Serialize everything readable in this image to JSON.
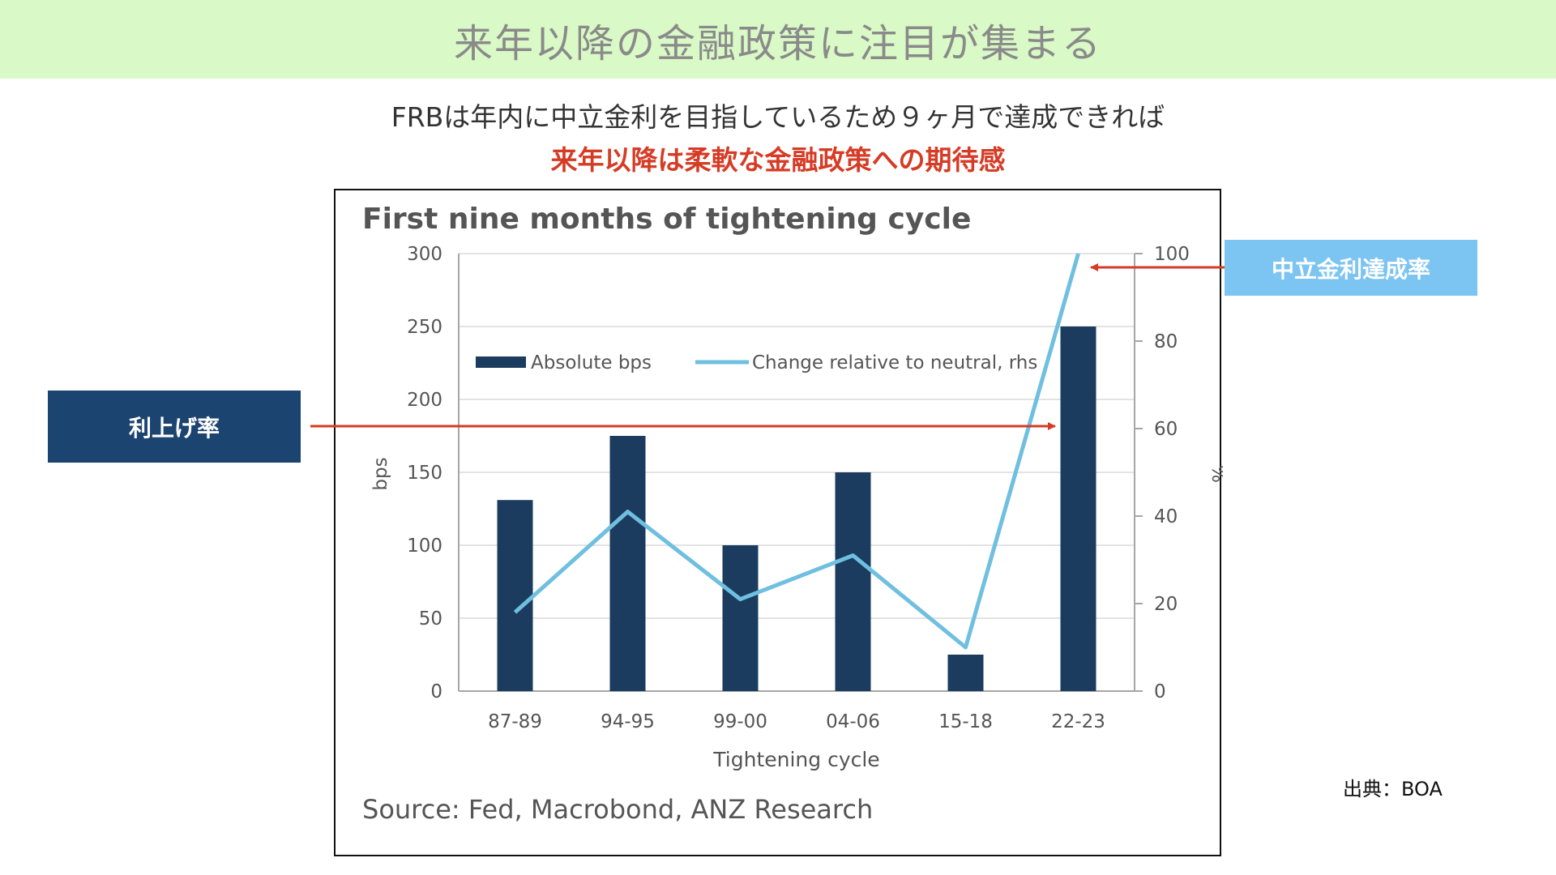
{
  "banner": {
    "title": "来年以降の金融政策に注目が集まる"
  },
  "subtitle": {
    "line1": "FRBは年内に中立金利を目指しているため９ヶ月で達成できれば",
    "line2": "来年以降は柔軟な金融政策への期待感"
  },
  "callouts": {
    "left": "利上げ率",
    "right": "中立金利達成率"
  },
  "source_note": "出典：BOA",
  "colors": {
    "bar": "#1b3c5e",
    "line": "#6fbfe0",
    "arrow": "#d63b25",
    "banner_bg": "#d9f9c6"
  },
  "chart_data": {
    "type": "bar",
    "title": "First nine months of tightening cycle",
    "source": "Source: Fed, Macrobond, ANZ Research",
    "xlabel": "Tightening cycle",
    "ylabel": "bps",
    "y2label": "%",
    "categories": [
      "87-89",
      "94-95",
      "99-00",
      "04-06",
      "15-18",
      "22-23"
    ],
    "ylim": [
      0,
      300
    ],
    "yticks": [
      0,
      50,
      100,
      150,
      200,
      250,
      300
    ],
    "y2lim": [
      0,
      100
    ],
    "y2ticks": [
      0,
      20,
      40,
      60,
      80,
      100
    ],
    "legend_position": "top",
    "series": [
      {
        "name": "Absolute bps",
        "type": "bar",
        "axis": "left",
        "values": [
          131,
          175,
          100,
          150,
          25,
          250
        ]
      },
      {
        "name": "Change relative to neutral, rhs",
        "type": "line",
        "axis": "right",
        "values": [
          18,
          41,
          21,
          31,
          10,
          100
        ]
      }
    ]
  }
}
